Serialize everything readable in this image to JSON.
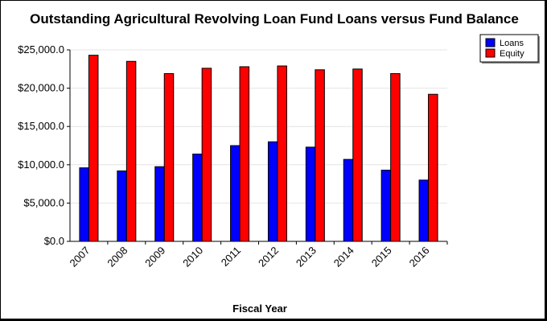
{
  "chart_data": {
    "type": "bar",
    "title": "Outstanding Agricultural Revolving Loan Fund Loans versus Fund Balance",
    "xlabel": "Fiscal Year",
    "ylabel": "",
    "categories": [
      "2007",
      "2008",
      "2009",
      "2010",
      "2011",
      "2012",
      "2013",
      "2014",
      "2015",
      "2016"
    ],
    "series": [
      {
        "name": "Loans",
        "color": "#0000ff",
        "values": [
          9600,
          9200,
          9750,
          11400,
          12500,
          13000,
          12300,
          10700,
          9300,
          8000
        ]
      },
      {
        "name": "Equity",
        "color": "#ff0000",
        "values": [
          24300,
          23500,
          21900,
          22600,
          22800,
          22900,
          22400,
          22500,
          21900,
          19200
        ]
      }
    ],
    "ylim": [
      0,
      25000
    ],
    "yticks": [
      0,
      5000,
      10000,
      15000,
      20000,
      25000
    ],
    "ytick_labels": [
      "$0.0",
      "$5,000.0",
      "$10,000.0",
      "$15,000.0",
      "$20,000.0",
      "$25,000.0"
    ],
    "grid": true,
    "legend_position": "top-right"
  }
}
